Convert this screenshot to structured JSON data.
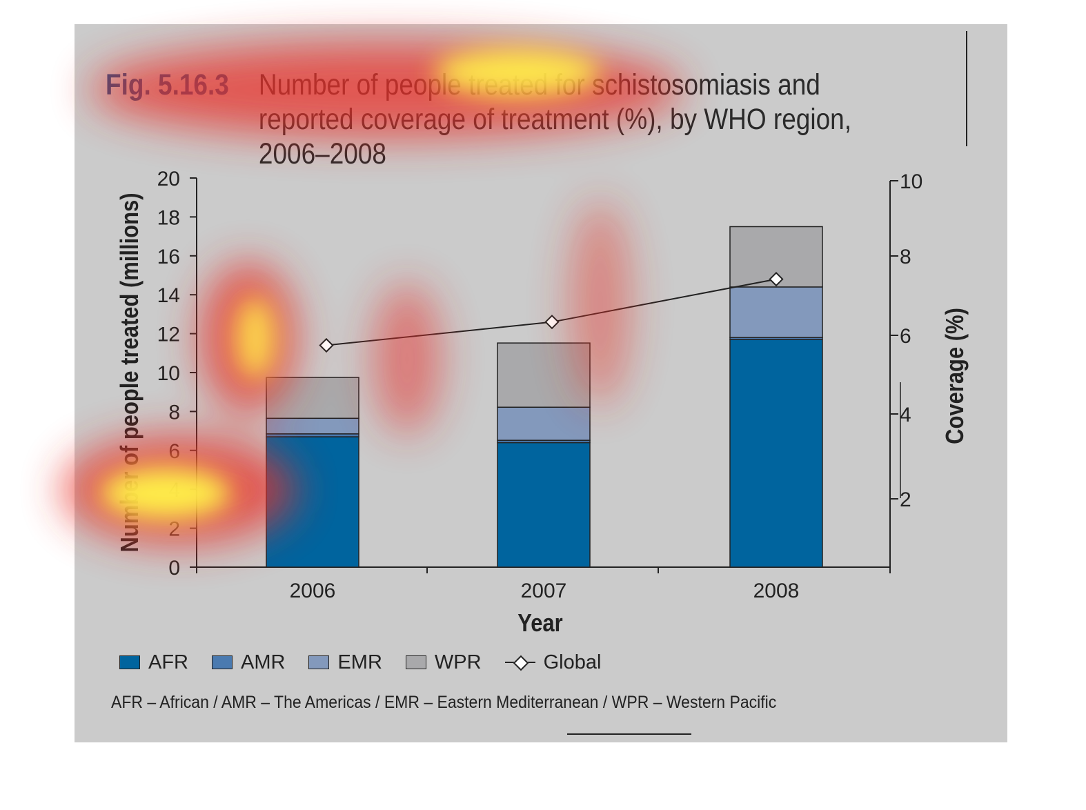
{
  "figure": {
    "number": "Fig. 5.16.3",
    "title_lines": [
      "Number of people treated for schistosomiasis and",
      "reported coverage of treatment (%), by WHO region,",
      "2006–2008"
    ],
    "footnote": "AFR – African / AMR – The Americas / EMR – Eastern Mediterranean / WPR – Western Pacific"
  },
  "colors": {
    "panel": "#cbcbcb",
    "AFR": "#00649e",
    "AMR": "#4a7ab0",
    "EMR": "#8399bc",
    "WPR": "#a9a9ab",
    "Global": "#ffffff"
  },
  "legend": [
    {
      "key": "AFR",
      "label": "AFR",
      "kind": "box"
    },
    {
      "key": "AMR",
      "label": "AMR",
      "kind": "box"
    },
    {
      "key": "EMR",
      "label": "EMR",
      "kind": "box"
    },
    {
      "key": "WPR",
      "label": "WPR",
      "kind": "box"
    },
    {
      "key": "Global",
      "label": "Global",
      "kind": "line-diamond"
    }
  ],
  "chart_data": {
    "type": "bar",
    "stacked": true,
    "categories": [
      "2006",
      "2007",
      "2008"
    ],
    "xlabel": "Year",
    "ylabel": "Number of people treated (millions)",
    "y2label": "Coverage (%)",
    "ylim": [
      0,
      20
    ],
    "y_ticks": [
      0,
      2,
      4,
      6,
      8,
      10,
      12,
      14,
      16,
      18,
      20
    ],
    "y2lim": [
      0,
      10
    ],
    "y2_ticks": [
      2,
      4,
      6,
      8,
      10
    ],
    "series": [
      {
        "name": "AFR",
        "values": [
          6.7,
          6.4,
          11.7
        ]
      },
      {
        "name": "AMR",
        "values": [
          0.15,
          0.12,
          0.1
        ]
      },
      {
        "name": "EMR",
        "values": [
          0.8,
          1.7,
          2.6
        ]
      },
      {
        "name": "WPR",
        "values": [
          2.1,
          3.3,
          3.1
        ]
      }
    ],
    "line_series": {
      "name": "Global",
      "axis": "right",
      "values": [
        5.7,
        6.3,
        7.4
      ]
    },
    "overlay": "attention heatmap"
  }
}
